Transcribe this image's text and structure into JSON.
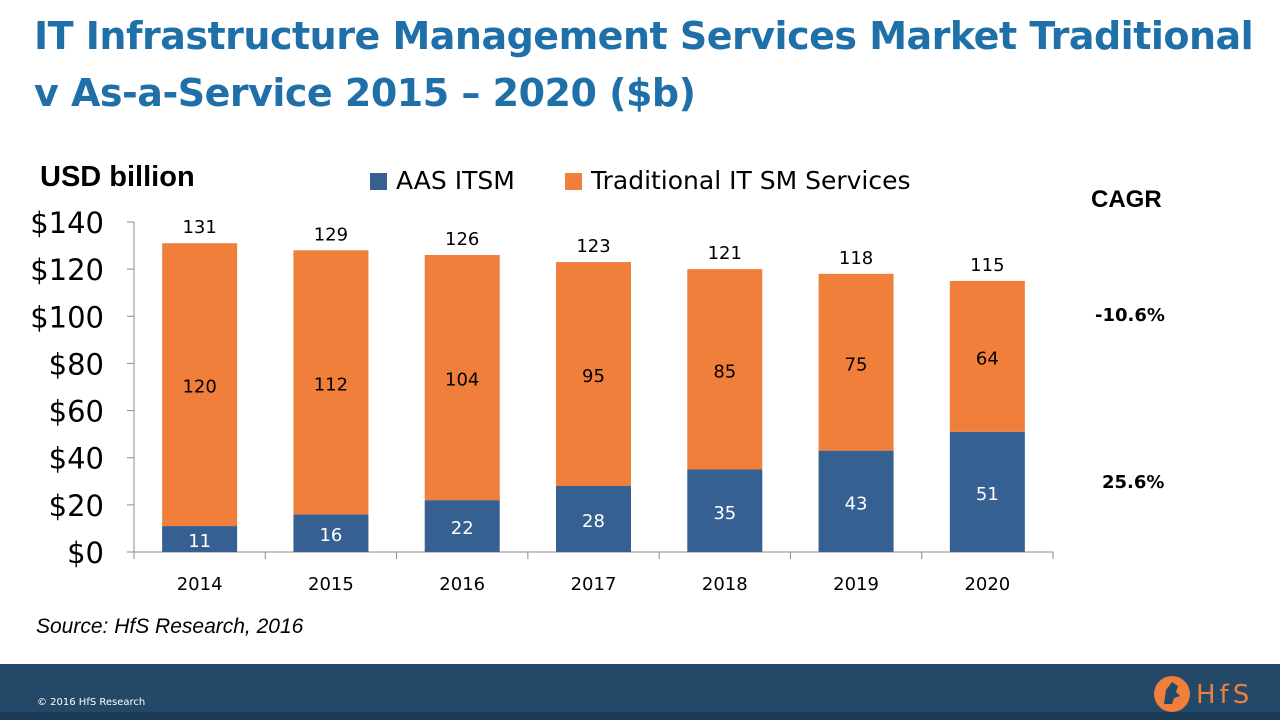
{
  "title": "IT Infrastructure Management Services Market Traditional v As-a-Service 2015 – 2020 ($b)",
  "unit_label": "USD billion",
  "cagr": {
    "heading": "CAGR",
    "traditional": "-10.6%",
    "aas": "25.6%"
  },
  "source": "Source: HfS Research, 2016",
  "footer": {
    "copyright": "© 2016 HfS Research",
    "logo_text": "HfS"
  },
  "colors": {
    "title": "#1f6fa8",
    "aas": "#376092",
    "traditional": "#f07f3c",
    "footer": "#234868",
    "logo": "#f07f3c"
  },
  "chart_data": {
    "type": "bar",
    "stacked": true,
    "categories": [
      "2014",
      "2015",
      "2016",
      "2017",
      "2018",
      "2019",
      "2020"
    ],
    "series": [
      {
        "name": "AAS ITSM",
        "values": [
          11,
          16,
          22,
          28,
          35,
          43,
          51
        ]
      },
      {
        "name": "Traditional IT SM Services",
        "values": [
          120,
          112,
          104,
          95,
          85,
          75,
          64
        ]
      }
    ],
    "totals": [
      131,
      129,
      126,
      123,
      121,
      118,
      115
    ],
    "y_ticks": [
      "$0",
      "$20",
      "$40",
      "$60",
      "$80",
      "$100",
      "$120",
      "$140"
    ],
    "ylim": [
      0,
      140
    ],
    "legend_position": "top",
    "grid": false
  }
}
